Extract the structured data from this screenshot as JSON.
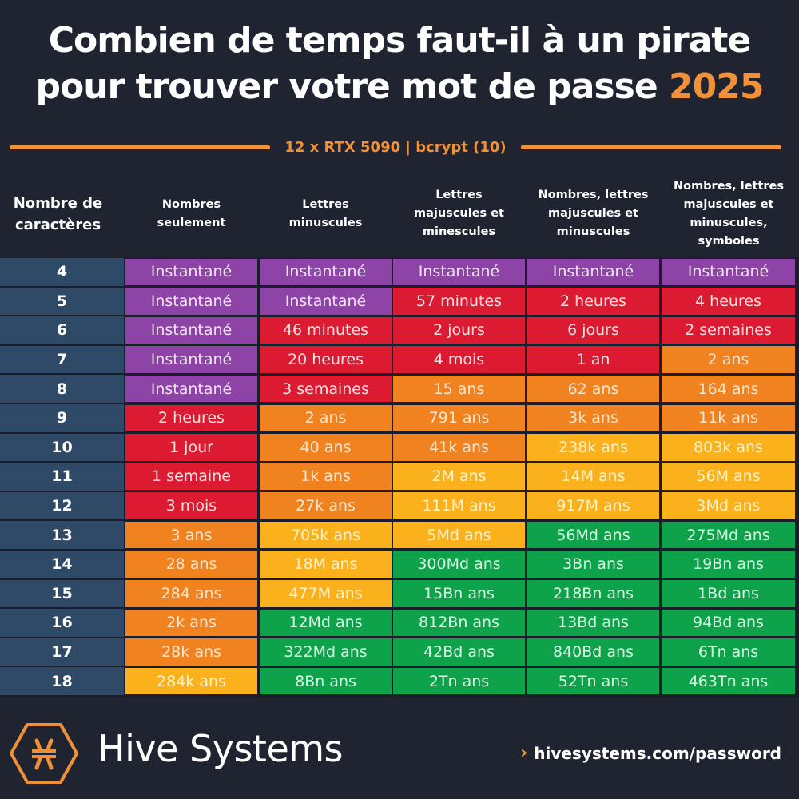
{
  "header": {
    "title_line1": "Combien de temps faut-il à un pirate",
    "title_line2": "pour trouver votre mot de passe",
    "year": "2025",
    "subtitle": "12 x RTX 5090 | bcrypt (10)"
  },
  "colors": {
    "background": "#1f2430",
    "accent": "#f0913a",
    "row_header": "#2f4a66",
    "purple": "#8e44a6",
    "red": "#dc1a32",
    "orange": "#f0821f",
    "yellow": "#fbb11b",
    "green": "#0ea24a"
  },
  "columns": [
    "Nombre de caractères",
    "Nombres seulement",
    "Lettres minuscules",
    "Lettres majuscules et minescules",
    "Nombres, lettres majuscules et minuscules",
    "Nombres, lettres majuscules et minuscules, symboles"
  ],
  "chart_data": {
    "type": "table",
    "title": "Combien de temps faut-il à un pirate pour trouver votre mot de passe 2025",
    "subtitle": "12 x RTX 5090 | bcrypt (10)",
    "columns": [
      "Nombre de caractères",
      "Nombres seulement",
      "Lettres minuscules",
      "Lettres majuscules et minescules",
      "Nombres, lettres majuscules et minuscules",
      "Nombres, lettres majuscules et minuscules, symboles"
    ],
    "rows": [
      {
        "chars": "4",
        "values": [
          "Instantané",
          "Instantané",
          "Instantané",
          "Instantané",
          "Instantané"
        ],
        "colors": [
          "purple",
          "purple",
          "purple",
          "purple",
          "purple"
        ]
      },
      {
        "chars": "5",
        "values": [
          "Instantané",
          "Instantané",
          "57 minutes",
          "2 heures",
          "4 heures"
        ],
        "colors": [
          "purple",
          "purple",
          "red",
          "red",
          "red"
        ]
      },
      {
        "chars": "6",
        "values": [
          "Instantané",
          "46 minutes",
          "2 jours",
          "6 jours",
          "2 semaines"
        ],
        "colors": [
          "purple",
          "red",
          "red",
          "red",
          "red"
        ]
      },
      {
        "chars": "7",
        "values": [
          "Instantané",
          "20 heures",
          "4 mois",
          "1 an",
          "2 ans"
        ],
        "colors": [
          "purple",
          "red",
          "red",
          "red",
          "orange"
        ]
      },
      {
        "chars": "8",
        "values": [
          "Instantané",
          "3 semaines",
          "15 ans",
          "62 ans",
          "164 ans"
        ],
        "colors": [
          "purple",
          "red",
          "orange",
          "orange",
          "orange"
        ]
      },
      {
        "chars": "9",
        "values": [
          "2 heures",
          "2 ans",
          "791 ans",
          "3k ans",
          "11k ans"
        ],
        "colors": [
          "red",
          "orange",
          "orange",
          "orange",
          "orange"
        ]
      },
      {
        "chars": "10",
        "values": [
          "1 jour",
          "40 ans",
          "41k ans",
          "238k ans",
          "803k ans"
        ],
        "colors": [
          "red",
          "orange",
          "orange",
          "yellow",
          "yellow"
        ]
      },
      {
        "chars": "11",
        "values": [
          "1 semaine",
          "1k ans",
          "2M ans",
          "14M ans",
          "56M ans"
        ],
        "colors": [
          "red",
          "orange",
          "yellow",
          "yellow",
          "yellow"
        ]
      },
      {
        "chars": "12",
        "values": [
          "3 mois",
          "27k ans",
          "111M ans",
          "917M ans",
          "3Md ans"
        ],
        "colors": [
          "red",
          "orange",
          "yellow",
          "yellow",
          "yellow"
        ]
      },
      {
        "chars": "13",
        "values": [
          "3 ans",
          "705k ans",
          "5Md ans",
          "56Md ans",
          "275Md ans"
        ],
        "colors": [
          "orange",
          "yellow",
          "yellow",
          "green",
          "green"
        ]
      },
      {
        "chars": "14",
        "values": [
          "28 ans",
          "18M ans",
          "300Md ans",
          "3Bn ans",
          "19Bn ans"
        ],
        "colors": [
          "orange",
          "yellow",
          "green",
          "green",
          "green"
        ]
      },
      {
        "chars": "15",
        "values": [
          "284 ans",
          "477M ans",
          "15Bn ans",
          "218Bn ans",
          "1Bd ans"
        ],
        "colors": [
          "orange",
          "yellow",
          "green",
          "green",
          "green"
        ]
      },
      {
        "chars": "16",
        "values": [
          "2k ans",
          "12Md ans",
          "812Bn ans",
          "13Bd ans",
          "94Bd ans"
        ],
        "colors": [
          "orange",
          "green",
          "green",
          "green",
          "green"
        ]
      },
      {
        "chars": "17",
        "values": [
          "28k ans",
          "322Md ans",
          "42Bd ans",
          "840Bd ans",
          "6Tn ans"
        ],
        "colors": [
          "orange",
          "green",
          "green",
          "green",
          "green"
        ]
      },
      {
        "chars": "18",
        "values": [
          "284k ans",
          "8Bn ans",
          "2Tn ans",
          "52Tn ans",
          "463Tn ans"
        ],
        "colors": [
          "yellow",
          "green",
          "green",
          "green",
          "green"
        ]
      }
    ]
  },
  "footer": {
    "brand": "Hive Systems",
    "logo_icon": "hive-hexagon-logo",
    "link_icon": "chevron-right-icon",
    "link_text": "hivesystems.com/password"
  }
}
